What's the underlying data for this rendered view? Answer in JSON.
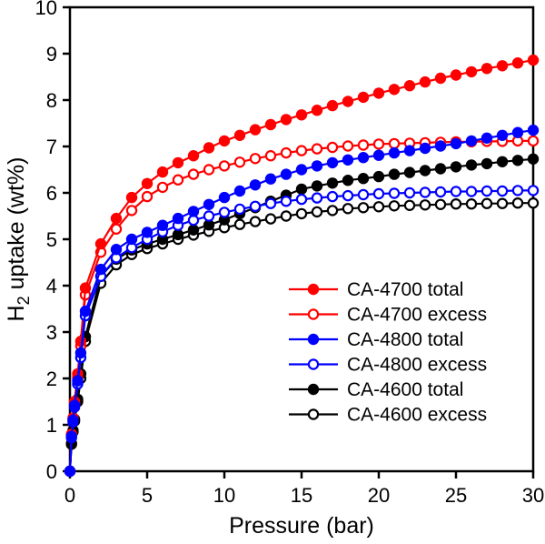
{
  "figure": {
    "background": "#ffffff",
    "axis_color": "#000000"
  },
  "chart_data": {
    "type": "line",
    "title": "",
    "xlabel": "Pressure (bar)",
    "ylabel": "H2 uptake (wt%)",
    "ylabel_parts": {
      "prefix": "H",
      "subscript": "2",
      "suffix": " uptake (wt%)"
    },
    "xlim": [
      0,
      30
    ],
    "ylim": [
      0,
      10
    ],
    "xticks": [
      0,
      5,
      10,
      15,
      20,
      25,
      30
    ],
    "yticks": [
      0,
      1,
      2,
      3,
      4,
      5,
      6,
      7,
      8,
      9,
      10
    ],
    "grid": false,
    "legend_position": "inside-center-right",
    "x": [
      0,
      0.1,
      0.2,
      0.3,
      0.5,
      0.7,
      1,
      2,
      3,
      4,
      5,
      6,
      7,
      8,
      9,
      10,
      11,
      12,
      13,
      14,
      15,
      16,
      17,
      18,
      19,
      20,
      21,
      22,
      23,
      24,
      25,
      26,
      27,
      28,
      29,
      30
    ],
    "series": [
      {
        "name": "CA-4700 total",
        "color": "#ff0000",
        "marker": "filled-circle",
        "values": [
          0,
          0.8,
          1.15,
          1.5,
          2.1,
          2.8,
          3.95,
          4.9,
          5.45,
          5.9,
          6.2,
          6.45,
          6.65,
          6.8,
          6.97,
          7.12,
          7.24,
          7.36,
          7.47,
          7.58,
          7.68,
          7.78,
          7.88,
          7.97,
          8.06,
          8.15,
          8.23,
          8.31,
          8.39,
          8.47,
          8.54,
          8.61,
          8.68,
          8.74,
          8.8,
          8.86
        ]
      },
      {
        "name": "CA-4700 excess",
        "color": "#ff0000",
        "marker": "open-circle",
        "values": [
          0,
          0.78,
          1.12,
          1.45,
          2.02,
          2.7,
          3.8,
          4.72,
          5.22,
          5.62,
          5.92,
          6.12,
          6.28,
          6.4,
          6.5,
          6.58,
          6.66,
          6.74,
          6.8,
          6.86,
          6.91,
          6.95,
          6.98,
          7.01,
          7.03,
          7.05,
          7.06,
          7.07,
          7.08,
          7.09,
          7.1,
          7.1,
          7.11,
          7.11,
          7.12,
          7.12
        ]
      },
      {
        "name": "CA-4800 total",
        "color": "#0000ff",
        "marker": "filled-circle",
        "values": [
          0,
          0.75,
          1.1,
          1.42,
          1.95,
          2.55,
          3.45,
          4.35,
          4.78,
          5.0,
          5.15,
          5.3,
          5.45,
          5.6,
          5.75,
          5.9,
          6.04,
          6.17,
          6.3,
          6.4,
          6.5,
          6.58,
          6.65,
          6.71,
          6.76,
          6.81,
          6.86,
          6.91,
          6.96,
          7.01,
          7.06,
          7.12,
          7.18,
          7.24,
          7.3,
          7.35
        ]
      },
      {
        "name": "CA-4800 excess",
        "color": "#0000ff",
        "marker": "open-circle",
        "values": [
          0,
          0.72,
          1.06,
          1.38,
          1.88,
          2.45,
          3.35,
          4.2,
          4.6,
          4.82,
          5.0,
          5.16,
          5.3,
          5.41,
          5.5,
          5.58,
          5.65,
          5.71,
          5.77,
          5.82,
          5.86,
          5.89,
          5.92,
          5.94,
          5.96,
          5.98,
          5.99,
          6.0,
          6.01,
          6.02,
          6.03,
          6.03,
          6.04,
          6.04,
          6.05,
          6.05
        ]
      },
      {
        "name": "CA-4600 total",
        "color": "#000000",
        "marker": "filled-circle",
        "values": [
          0,
          0.6,
          0.88,
          1.12,
          1.55,
          2.1,
          2.9,
          4.2,
          4.57,
          4.77,
          4.9,
          5.0,
          5.1,
          5.2,
          5.31,
          5.42,
          5.55,
          5.68,
          5.82,
          5.95,
          6.08,
          6.15,
          6.21,
          6.27,
          6.31,
          6.35,
          6.4,
          6.44,
          6.48,
          6.52,
          6.56,
          6.6,
          6.63,
          6.67,
          6.7,
          6.73
        ]
      },
      {
        "name": "CA-4600 excess",
        "color": "#000000",
        "marker": "open-circle",
        "values": [
          0,
          0.58,
          0.85,
          1.08,
          1.5,
          2.0,
          2.8,
          4.05,
          4.45,
          4.67,
          4.8,
          4.9,
          5.0,
          5.09,
          5.17,
          5.25,
          5.32,
          5.38,
          5.44,
          5.5,
          5.55,
          5.59,
          5.62,
          5.66,
          5.68,
          5.7,
          5.72,
          5.73,
          5.74,
          5.75,
          5.76,
          5.76,
          5.77,
          5.77,
          5.78,
          5.78
        ]
      }
    ],
    "draw_order": [
      5,
      4,
      1,
      0,
      3,
      2
    ]
  }
}
